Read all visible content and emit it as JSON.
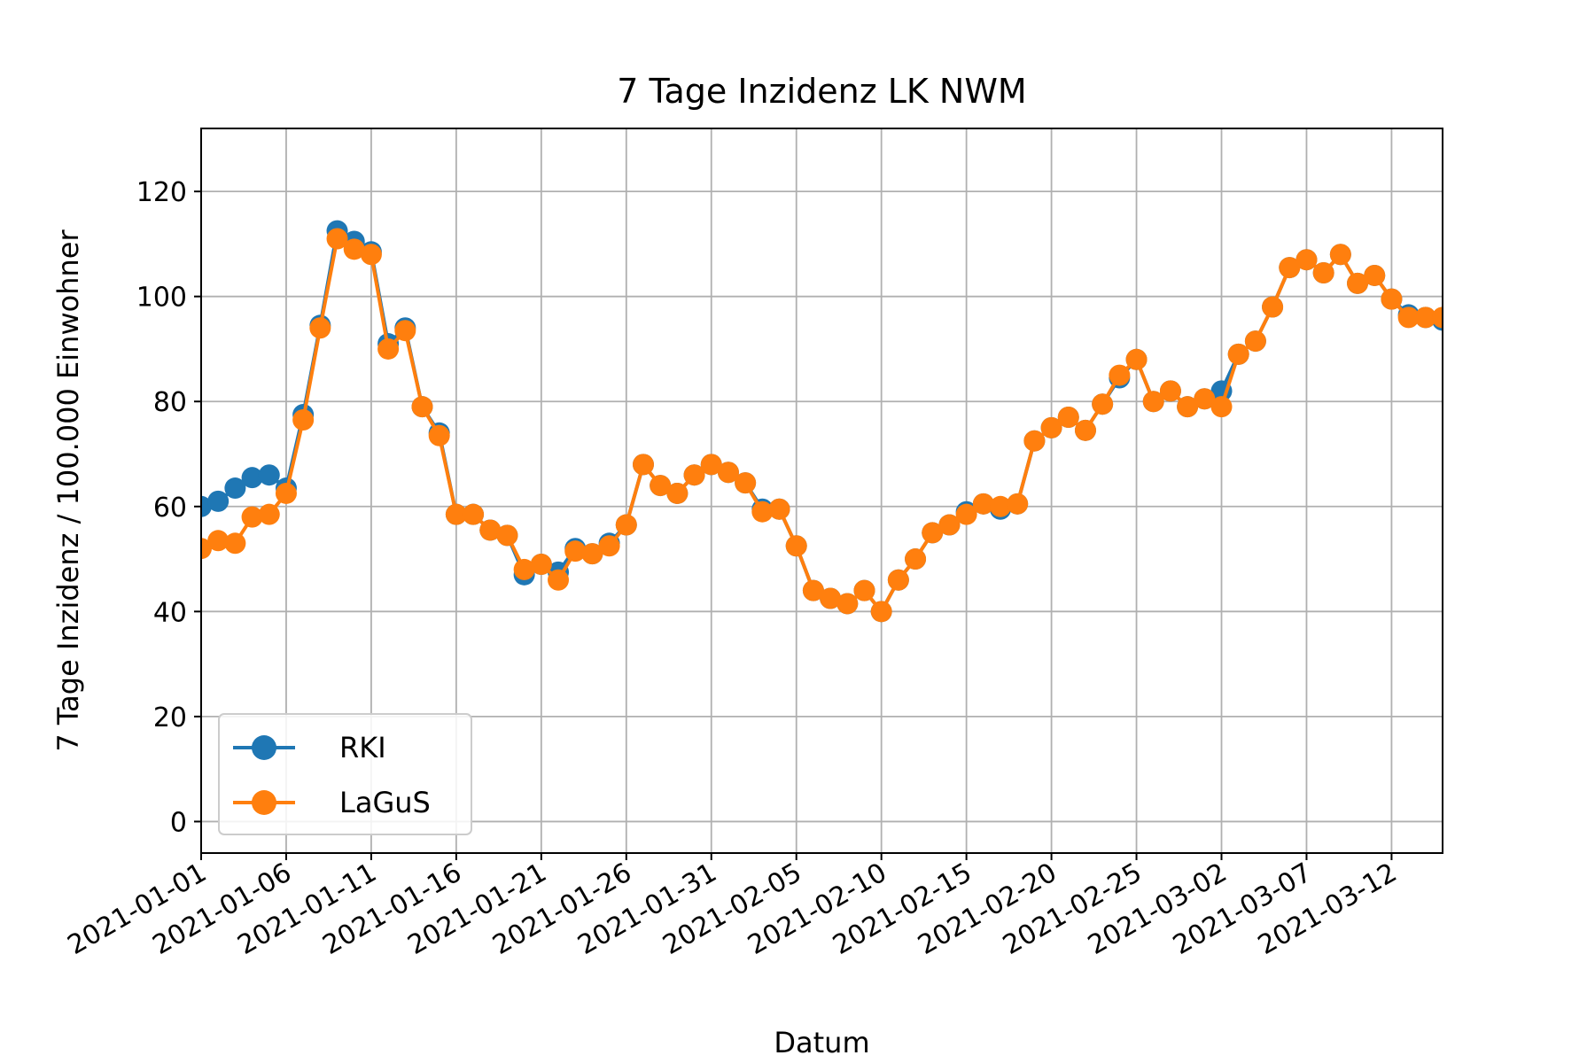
{
  "chart_data": {
    "type": "line",
    "title": "7 Tage Inzidenz LK NWM",
    "xlabel": "Datum",
    "ylabel": "7 Tage Inzidenz / 100.000 Einwohner",
    "x_start": "2021-01-01",
    "x": [
      "2021-01-01",
      "2021-01-02",
      "2021-01-03",
      "2021-01-04",
      "2021-01-05",
      "2021-01-06",
      "2021-01-07",
      "2021-01-08",
      "2021-01-09",
      "2021-01-10",
      "2021-01-11",
      "2021-01-12",
      "2021-01-13",
      "2021-01-14",
      "2021-01-15",
      "2021-01-16",
      "2021-01-17",
      "2021-01-18",
      "2021-01-19",
      "2021-01-20",
      "2021-01-21",
      "2021-01-22",
      "2021-01-23",
      "2021-01-24",
      "2021-01-25",
      "2021-01-26",
      "2021-01-27",
      "2021-01-28",
      "2021-01-29",
      "2021-01-30",
      "2021-01-31",
      "2021-02-01",
      "2021-02-02",
      "2021-02-03",
      "2021-02-04",
      "2021-02-05",
      "2021-02-06",
      "2021-02-07",
      "2021-02-08",
      "2021-02-09",
      "2021-02-10",
      "2021-02-11",
      "2021-02-12",
      "2021-02-13",
      "2021-02-14",
      "2021-02-15",
      "2021-02-16",
      "2021-02-17",
      "2021-02-18",
      "2021-02-19",
      "2021-02-20",
      "2021-02-21",
      "2021-02-22",
      "2021-02-23",
      "2021-02-24",
      "2021-02-25",
      "2021-02-26",
      "2021-02-27",
      "2021-02-28",
      "2021-03-01",
      "2021-03-02",
      "2021-03-03",
      "2021-03-04",
      "2021-03-05",
      "2021-03-06",
      "2021-03-07",
      "2021-03-08",
      "2021-03-09",
      "2021-03-10",
      "2021-03-11",
      "2021-03-12",
      "2021-03-13",
      "2021-03-14",
      "2021-03-15"
    ],
    "xlim": [
      "2021-01-01",
      "2021-03-15"
    ],
    "ylim": [
      -6,
      132
    ],
    "yticks": [
      0,
      20,
      40,
      60,
      80,
      100,
      120
    ],
    "xticks": [
      "2021-01-01",
      "2021-01-06",
      "2021-01-11",
      "2021-01-16",
      "2021-01-21",
      "2021-01-26",
      "2021-01-31",
      "2021-02-05",
      "2021-02-10",
      "2021-02-15",
      "2021-02-20",
      "2021-02-25",
      "2021-03-02",
      "2021-03-07",
      "2021-03-12"
    ],
    "grid": true,
    "legend_position": "lower left",
    "series": [
      {
        "name": "RKI",
        "color": "#1f77b4",
        "values": [
          60,
          61,
          63.5,
          65.5,
          66,
          63.5,
          77.5,
          94.5,
          112.5,
          110.5,
          108.5,
          91,
          94,
          79,
          74,
          58.5,
          58.5,
          55.5,
          54.5,
          47,
          49,
          47.5,
          52,
          51,
          53,
          56.5,
          68,
          64,
          62.5,
          66,
          68,
          66.5,
          64.5,
          59.5,
          59.5,
          52.5,
          44,
          42.5,
          41.5,
          44,
          40,
          46,
          50,
          55,
          56.5,
          59,
          60.5,
          59.5,
          60.5,
          72.5,
          75,
          77,
          74.5,
          79.5,
          84.5,
          88,
          80,
          82,
          79,
          80.5,
          82,
          89,
          91.5,
          98,
          105.5,
          107,
          104.5,
          108,
          102.5,
          104,
          99.5,
          96.5,
          96,
          95.5
        ]
      },
      {
        "name": "LaGuS",
        "color": "#ff7f0e",
        "values": [
          52,
          53.5,
          53,
          58,
          58.5,
          62.5,
          76.5,
          94,
          111,
          109,
          108,
          90,
          93.5,
          79,
          73.5,
          58.5,
          58.5,
          55.5,
          54.5,
          48,
          49,
          46,
          51.5,
          51,
          52.5,
          56.5,
          68,
          64,
          62.5,
          66,
          68,
          66.5,
          64.5,
          59,
          59.5,
          52.5,
          44,
          42.5,
          41.5,
          44,
          40,
          46,
          50,
          55,
          56.5,
          58.5,
          60.5,
          60,
          60.5,
          72.5,
          75,
          77,
          74.5,
          79.5,
          85,
          88,
          80,
          82,
          79,
          80.5,
          79,
          89,
          91.5,
          98,
          105.5,
          107,
          104.5,
          108,
          102.5,
          104,
          99.5,
          96,
          96,
          96
        ]
      }
    ]
  }
}
